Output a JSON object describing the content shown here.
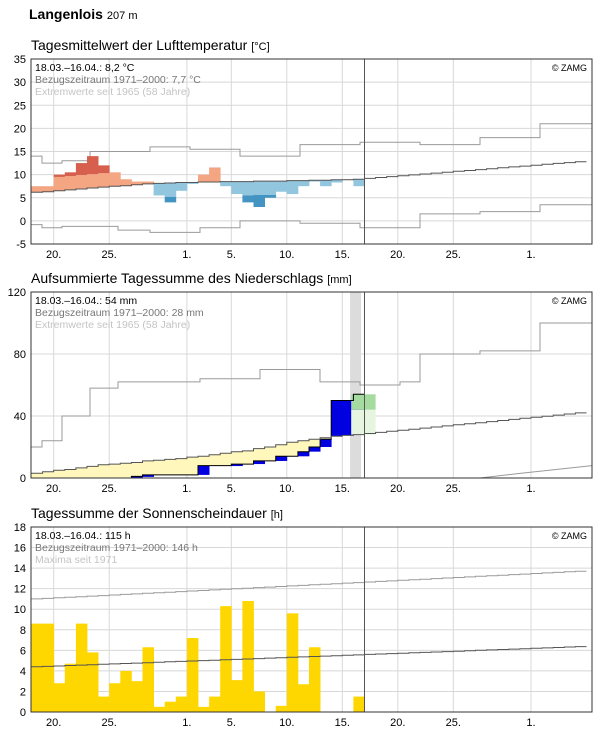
{
  "header": {
    "station": "Langenlois",
    "elevation": "207 m"
  },
  "copyright": "© ZAMG",
  "x_tick_labels": [
    "20.",
    "25.",
    "1.",
    "5.",
    "10.",
    "15.",
    "20.",
    "25.",
    "1."
  ],
  "chart_data": [
    {
      "id": "temperature",
      "type": "bar",
      "title": "Tagesmittelwert der Lufttemperatur",
      "unit": "[°C]",
      "ylim": [
        -5,
        35
      ],
      "yticks": [
        -5,
        0,
        5,
        10,
        15,
        20,
        25,
        30,
        35
      ],
      "info": [
        "18.03.–16.04.: 8,2 °C",
        "Bezugszeitraum 1971–2000: 7,7 °C",
        "Extremwerte seit 1965 (58 Jahre)"
      ],
      "series": [
        {
          "values": [
            7.5,
            7.5,
            10,
            10.5,
            12.5,
            14,
            12,
            10.5,
            9,
            8.5,
            8.5,
            5.5,
            4,
            6.5,
            8,
            10,
            11.5,
            7.5,
            5.8,
            4,
            3,
            5,
            6.3,
            5.8,
            7.5,
            8.5,
            7.5,
            8.3,
            9,
            7.5
          ]
        },
        {
          "values": [
            6.2,
            6.3,
            6.5,
            6.7,
            6.9,
            7.1,
            7.3,
            7.5,
            7.6,
            7.8,
            8.0,
            8.1,
            8.2,
            8.3,
            8.3,
            8.4,
            8.4,
            8.5,
            8.5,
            8.5,
            8.6,
            8.6,
            8.6,
            8.7,
            8.7,
            8.8,
            8.8,
            8.9,
            8.9,
            9.0
          ]
        }
      ]
    },
    {
      "id": "precipitation",
      "type": "area",
      "title": "Aufsummierte Tagessumme des Niederschlags",
      "unit": "[mm]",
      "ylim": [
        0,
        120
      ],
      "yticks": [
        0,
        40,
        80,
        120
      ],
      "info": [
        "18.03.–16.04.: 54 mm",
        "Bezugszeitraum 1971–2000: 28 mm",
        "Extremwerte seit 1965 (58 Jahre)"
      ],
      "series": [
        {
          "values": [
            0,
            0,
            0,
            0,
            0,
            0,
            0,
            0,
            0,
            1,
            2,
            2,
            2,
            2,
            2,
            8,
            8,
            8,
            9,
            9,
            11,
            11,
            14,
            14,
            17,
            20,
            25,
            50,
            50,
            54
          ]
        },
        {
          "values": [
            3,
            4,
            5,
            5.5,
            6.5,
            7.5,
            8.5,
            9,
            9.5,
            10,
            11,
            11.5,
            12,
            12.5,
            13.5,
            14,
            15,
            16,
            17,
            17.5,
            19,
            20,
            21.5,
            23,
            24,
            25,
            26,
            27,
            27.5,
            28
          ]
        }
      ]
    },
    {
      "id": "sunshine",
      "type": "bar",
      "title": "Tagessumme der Sonnenscheindauer",
      "unit": "[h]",
      "ylim": [
        0,
        18
      ],
      "yticks": [
        0,
        2,
        4,
        6,
        8,
        10,
        12,
        14,
        16,
        18
      ],
      "info": [
        "18.03.–16.04.: 115 h",
        "Bezugszeitraum 1971–2000: 146 h",
        "Maxima seit 1971"
      ],
      "series": [
        {
          "values": [
            8.6,
            8.6,
            2.8,
            4.7,
            8.6,
            5.8,
            1.5,
            2.8,
            4,
            3,
            6.3,
            0.5,
            1,
            1.5,
            7.2,
            0.5,
            1.5,
            10.3,
            3.1,
            10.8,
            2,
            0,
            0.6,
            9.6,
            2.7,
            6.3,
            0,
            0,
            0,
            1.5
          ]
        }
      ]
    }
  ]
}
